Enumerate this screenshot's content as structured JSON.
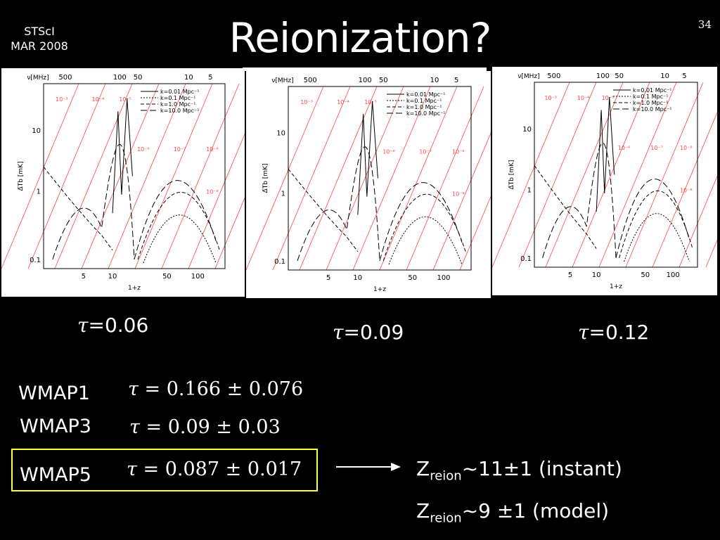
{
  "header": {
    "org": "STScI",
    "date": "MAR 2008",
    "page_number": "34"
  },
  "title": "Reionization?",
  "panels": [
    {
      "tau_symbol": "τ",
      "tau_text": "=0.06"
    },
    {
      "tau_symbol": "τ",
      "tau_text": "=0.09"
    },
    {
      "tau_symbol": "τ",
      "tau_text": "=0.12"
    }
  ],
  "plot_labels": {
    "freq_axis": "ν[MHz]",
    "freq_ticks": [
      "500",
      "100",
      "50",
      "10",
      "5"
    ],
    "x_axis": "1+z",
    "x_ticks": [
      "5",
      "10",
      "50",
      "100"
    ],
    "y_axis": "Δ̄Tb [mK]",
    "y_ticks": [
      "10",
      "1",
      "0.1"
    ],
    "legend": [
      "k=0.01 Mpc⁻¹",
      "k=0.1 Mpc⁻¹",
      "k=1.0 Mpc⁻¹",
      "k=10.0 Mpc⁻¹"
    ],
    "red_labels": [
      "10⁻³",
      "10⁻⁴",
      "10⁻⁵",
      "10⁻⁶",
      "10⁻⁷",
      "10⁻⁸",
      "10⁻⁸"
    ]
  },
  "wmap": [
    {
      "label": "WMAP1",
      "symbol": "τ",
      "value": "= 0.166 ± 0.076"
    },
    {
      "label": "WMAP3",
      "symbol": "τ",
      "value": "= 0.09 ± 0.03"
    },
    {
      "label": "WMAP5",
      "symbol": "τ",
      "value": "= 0.087 ± 0.017"
    }
  ],
  "zreion": [
    {
      "prefix": "Z",
      "sub": "reion",
      "rest": "~11±1 (instant)"
    },
    {
      "prefix": "Z",
      "sub": "reion",
      "rest": "~9 ±1 (model)"
    }
  ],
  "colors": {
    "highlight_box": "#ffff44",
    "grid_red": "#ff4444",
    "background": "#000000"
  }
}
